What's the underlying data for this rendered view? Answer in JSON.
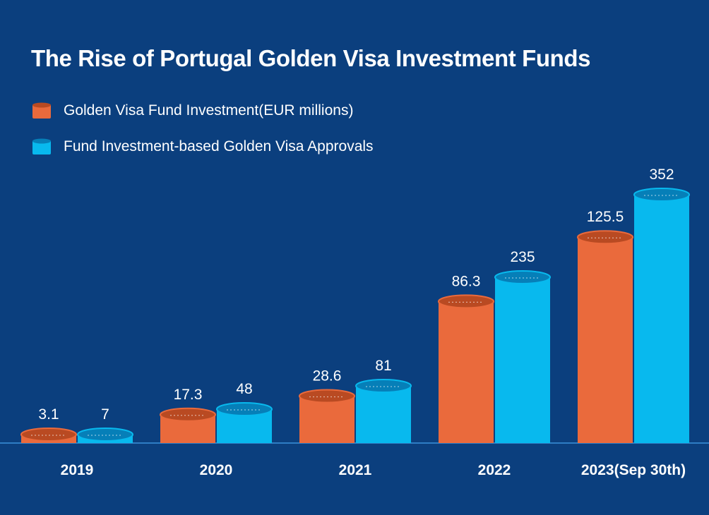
{
  "chart_data": {
    "type": "bar",
    "title": "The Rise of Portugal Golden Visa Investment Funds",
    "categories": [
      "2019",
      "2020",
      "2021",
      "2022",
      "2023(Sep 30th)"
    ],
    "series": [
      {
        "name": "Golden Visa Fund Investment(EUR millions)",
        "values": [
          3.1,
          17.3,
          28.6,
          86.3,
          125.5
        ],
        "labels": [
          "3.1",
          "17.3",
          "28.6",
          "86.3",
          "125.5"
        ],
        "color": "#ea6a3c",
        "color_dark": "#b94a22"
      },
      {
        "name": "Fund Investment-based Golden Visa Approvals",
        "values": [
          7,
          48,
          81,
          235,
          352
        ],
        "labels": [
          "7",
          "48",
          "81",
          "235",
          "352"
        ],
        "color": "#08b9ee",
        "color_dark": "#067fb8"
      }
    ],
    "grid": false,
    "legend_placement": "top-left",
    "background": "#0b3f7e",
    "baseline_color": "#2e7dc4"
  }
}
